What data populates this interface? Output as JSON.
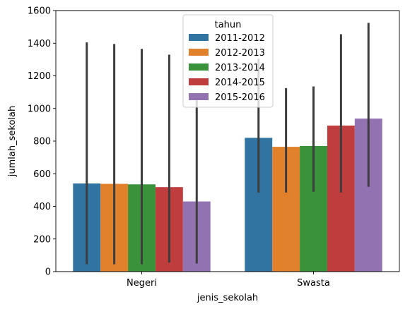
{
  "chart_data": {
    "type": "bar",
    "xlabel": "jenis_sekolah",
    "ylabel": "jumlah_sekolah",
    "categories": [
      "Negeri",
      "Swasta"
    ],
    "ylim": [
      0,
      1600
    ],
    "yticks": [
      0,
      200,
      400,
      600,
      800,
      1000,
      1200,
      1400,
      1600
    ],
    "grid": false,
    "legend": {
      "title": "tahun",
      "placement": "top-center"
    },
    "series": [
      {
        "name": "2011-2012",
        "color": "#3274a1",
        "values": [
          540,
          820
        ],
        "ci_low": [
          45,
          485
        ],
        "ci_high": [
          1405,
          1305
        ]
      },
      {
        "name": "2012-2013",
        "color": "#e1812c",
        "values": [
          538,
          765
        ],
        "ci_low": [
          45,
          485
        ],
        "ci_high": [
          1395,
          1125
        ]
      },
      {
        "name": "2013-2014",
        "color": "#3a923a",
        "values": [
          535,
          770
        ],
        "ci_low": [
          45,
          490
        ],
        "ci_high": [
          1365,
          1135
        ]
      },
      {
        "name": "2014-2015",
        "color": "#c03d3e",
        "values": [
          518,
          895
        ],
        "ci_low": [
          55,
          485
        ],
        "ci_high": [
          1330,
          1455
        ]
      },
      {
        "name": "2015-2016",
        "color": "#9372b2",
        "values": [
          430,
          938
        ],
        "ci_low": [
          50,
          520
        ],
        "ci_high": [
          1080,
          1525
        ]
      }
    ]
  }
}
